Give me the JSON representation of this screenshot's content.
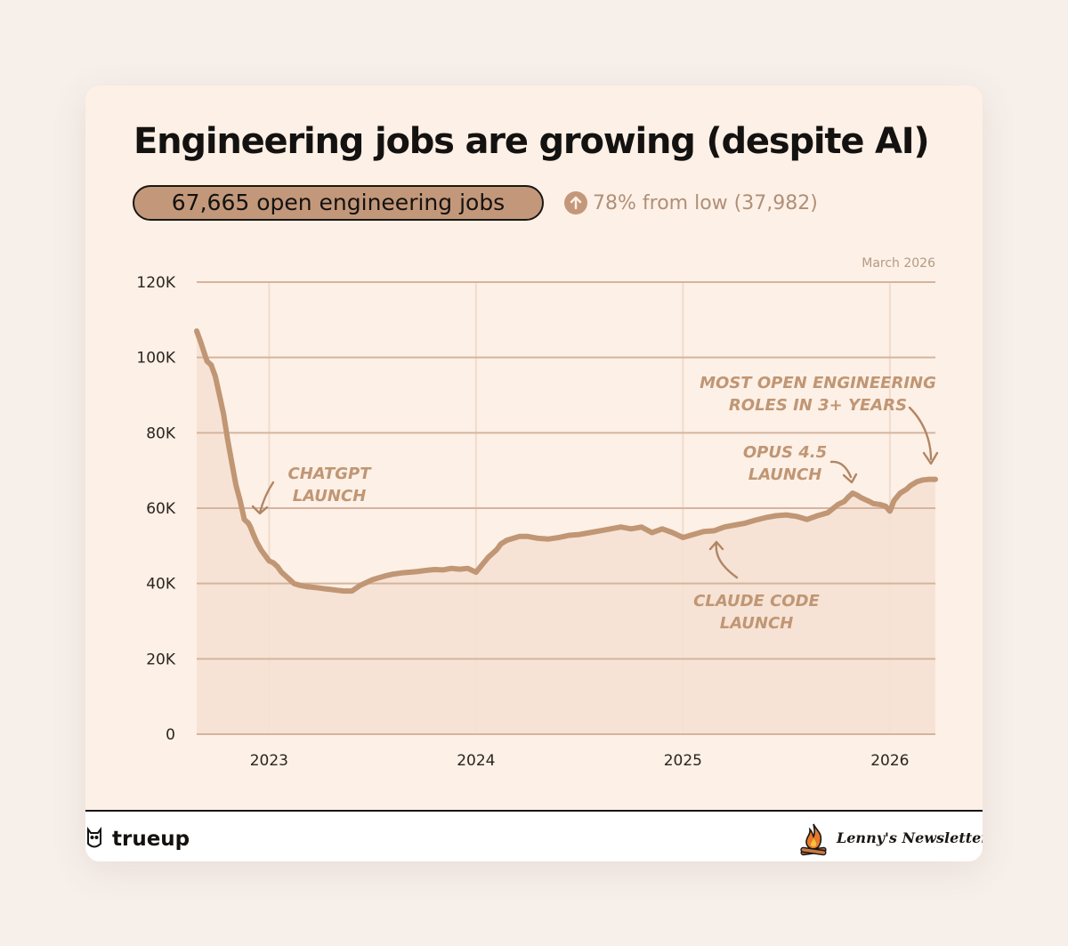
{
  "header": {
    "title": "Engineering jobs are growing (despite AI)",
    "open_jobs": "67,665 open engineering jobs",
    "change": "78% from low (37,982)",
    "date": "March 2026"
  },
  "footer": {
    "brand_left": "trueup",
    "brand_right": "Lenny's Newsletter"
  },
  "colors": {
    "background": "#fdf0e6",
    "line": "#c09674",
    "fill": "#f6e0d1",
    "grid": "#d5b49e",
    "annotation": "#c09674",
    "text": "#141210"
  },
  "chart_data": {
    "type": "area",
    "title": "Engineering jobs are growing (despite AI)",
    "xlabel": "",
    "ylabel": "",
    "x_ticks": [
      {
        "label": "2023",
        "value": 2023.0
      },
      {
        "label": "2024",
        "value": 2024.0
      },
      {
        "label": "2025",
        "value": 2025.0
      },
      {
        "label": "2026",
        "value": 2026.0
      }
    ],
    "y_ticks": [
      {
        "label": "0",
        "value": 0
      },
      {
        "label": "20K",
        "value": 20000
      },
      {
        "label": "40K",
        "value": 40000
      },
      {
        "label": "60K",
        "value": 60000
      },
      {
        "label": "80K",
        "value": 80000
      },
      {
        "label": "100K",
        "value": 100000
      },
      {
        "label": "120K",
        "value": 120000
      }
    ],
    "xlim": [
      2022.65,
      2026.22
    ],
    "ylim": [
      0,
      120000
    ],
    "grid": "horizontal",
    "series": [
      {
        "name": "Open engineering jobs",
        "x": [
          2022.65,
          2022.67,
          2022.7,
          2022.72,
          2022.74,
          2022.76,
          2022.78,
          2022.8,
          2022.82,
          2022.84,
          2022.86,
          2022.88,
          2022.9,
          2022.91,
          2022.92,
          2022.94,
          2022.96,
          2022.98,
          2023.0,
          2023.02,
          2023.04,
          2023.06,
          2023.08,
          2023.1,
          2023.12,
          2023.15,
          2023.18,
          2023.21,
          2023.24,
          2023.27,
          2023.3,
          2023.33,
          2023.36,
          2023.4,
          2023.44,
          2023.48,
          2023.5,
          2023.53,
          2023.56,
          2023.6,
          2023.64,
          2023.68,
          2023.72,
          2023.76,
          2023.8,
          2023.84,
          2023.88,
          2023.92,
          2023.96,
          2024.0,
          2024.03,
          2024.06,
          2024.08,
          2024.1,
          2024.12,
          2024.15,
          2024.18,
          2024.21,
          2024.25,
          2024.3,
          2024.35,
          2024.4,
          2024.45,
          2024.5,
          2024.55,
          2024.6,
          2024.65,
          2024.7,
          2024.75,
          2024.8,
          2024.85,
          2024.9,
          2024.95,
          2025.0,
          2025.05,
          2025.1,
          2025.15,
          2025.2,
          2025.25,
          2025.3,
          2025.35,
          2025.4,
          2025.45,
          2025.5,
          2025.55,
          2025.6,
          2025.65,
          2025.7,
          2025.75,
          2025.78,
          2025.8,
          2025.82,
          2025.84,
          2025.86,
          2025.88,
          2025.9,
          2025.92,
          2025.95,
          2025.98,
          2026.0,
          2026.02,
          2026.05,
          2026.08,
          2026.1,
          2026.13,
          2026.16,
          2026.19,
          2026.22
        ],
        "values": [
          107000,
          104000,
          99000,
          98000,
          95000,
          90000,
          85000,
          78000,
          72000,
          66000,
          62000,
          57000,
          56000,
          55000,
          53500,
          51000,
          49000,
          47500,
          46000,
          45500,
          44500,
          43000,
          42000,
          41000,
          40000,
          39500,
          39200,
          39000,
          38800,
          38600,
          38400,
          38200,
          38000,
          38000,
          39500,
          40500,
          41000,
          41500,
          42000,
          42500,
          42800,
          43000,
          43200,
          43500,
          43700,
          43600,
          44000,
          43800,
          44000,
          43000,
          45000,
          47000,
          48000,
          49000,
          50500,
          51500,
          52000,
          52500,
          52500,
          52000,
          51800,
          52200,
          52800,
          53000,
          53500,
          54000,
          54500,
          55000,
          54500,
          55000,
          53500,
          54500,
          53500,
          52200,
          53000,
          53800,
          54000,
          55000,
          55500,
          56000,
          56800,
          57500,
          58000,
          58200,
          57800,
          57000,
          58000,
          58800,
          61000,
          61800,
          63000,
          64000,
          63500,
          62800,
          62300,
          61800,
          61200,
          61000,
          60500,
          59200,
          62000,
          64000,
          65000,
          66000,
          67000,
          67500,
          67665,
          67665
        ]
      }
    ],
    "annotations": [
      {
        "text": "CHATGPT LAUNCH",
        "lines": [
          "CHATGPT",
          "LAUNCH"
        ],
        "x": 2022.92
      },
      {
        "text": "CLAUDE CODE LAUNCH",
        "lines": [
          "CLAUDE CODE",
          "LAUNCH"
        ],
        "x": 2025.17
      },
      {
        "text": "OPUS 4.5 LAUNCH",
        "lines": [
          "OPUS 4.5",
          "LAUNCH"
        ],
        "x": 2025.88
      },
      {
        "text": "MOST OPEN ENGINEERING ROLES IN 3+ YEARS",
        "lines": [
          "MOST OPEN ENGINEERING",
          "ROLES IN 3+ YEARS"
        ],
        "x": 2026.2
      }
    ]
  }
}
